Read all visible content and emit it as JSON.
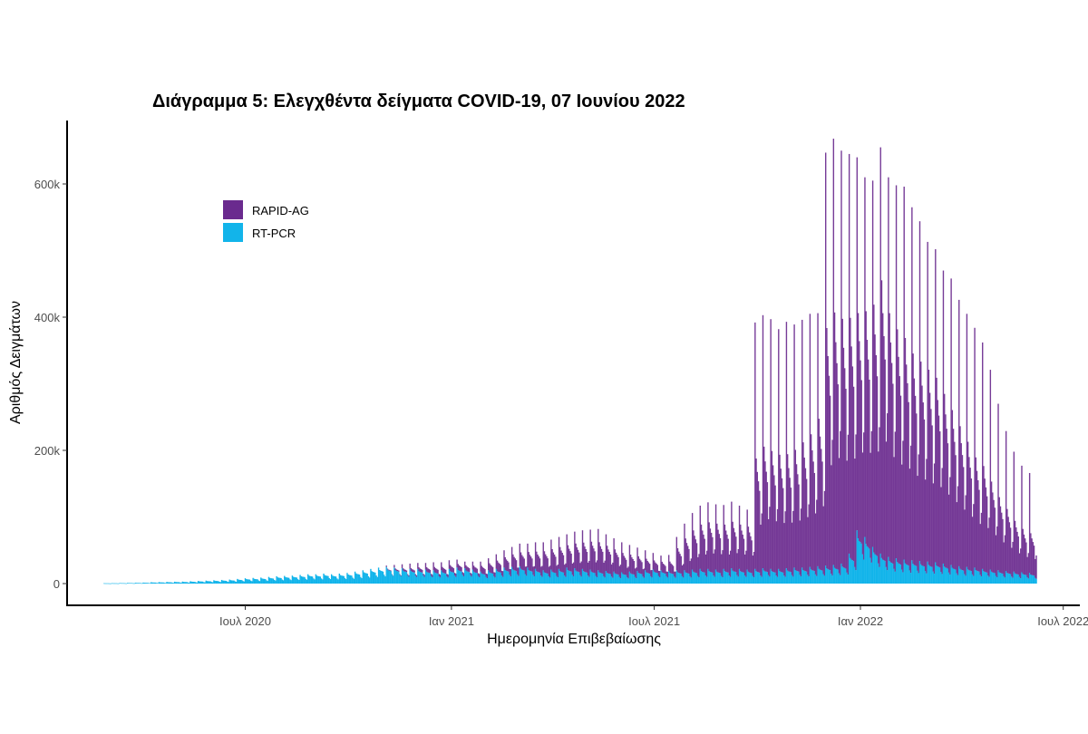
{
  "chart_data": {
    "type": "bar",
    "stacked": true,
    "title": "Διάγραμμα 5: Ελεγχθέντα δείγματα COVID-19, 07 Ιουνίου 2022",
    "xlabel": "Ημερομηνία Επιβεβαίωσης",
    "ylabel": "Αριθμός Δειγμάτων",
    "ylim": [
      0,
      690000
    ],
    "yticks": [
      0,
      200000,
      400000,
      600000
    ],
    "ytick_labels": [
      "0",
      "200k",
      "400k",
      "600k"
    ],
    "x_range": [
      "2020-01-24",
      "2022-07-15"
    ],
    "xticks": [
      "2020-07-01",
      "2021-01-01",
      "2021-07-01",
      "2022-01-01",
      "2022-07-01"
    ],
    "xtick_labels": [
      "Ιουλ 2020",
      "Ιαν 2021",
      "Ιουλ 2021",
      "Ιαν 2022",
      "Ιουλ 2022"
    ],
    "grid": false,
    "legend_position": "top-left",
    "granularity": "daily values summarized per week (first day, weekly peak day value, typical weekday value), units: samples",
    "start_date": "2020-02-26",
    "end_date": "2022-06-07",
    "series": [
      {
        "name": "RAPID-AG",
        "color": "#6a2a8e",
        "weekly_peak_k": [
          0,
          0,
          0,
          0,
          0,
          0,
          0,
          0,
          0,
          0,
          0,
          0,
          0,
          0,
          0,
          0,
          0,
          0,
          0,
          0,
          0,
          0,
          0,
          0,
          0,
          0,
          0,
          0,
          0,
          0,
          0,
          0,
          0,
          0,
          0,
          0,
          2,
          4,
          6,
          8,
          9,
          10,
          12,
          12,
          13,
          12,
          10,
          12,
          15,
          18,
          22,
          26,
          30,
          34,
          36,
          40,
          42,
          45,
          48,
          50,
          55,
          58,
          60,
          62,
          55,
          50,
          45,
          40,
          35,
          30,
          25,
          22,
          24,
          50,
          70,
          85,
          95,
          100,
          98,
          96,
          100,
          95,
          90,
          370,
          380,
          375,
          360,
          370,
          365,
          372,
          380,
          380,
          620,
          640,
          620,
          600,
          560,
          540,
          550,
          610,
          570,
          560,
          560,
          530,
          510,
          480,
          470,
          440,
          430,
          400,
          380,
          360,
          340,
          300,
          250,
          210,
          180,
          160,
          150,
          140,
          135,
          130
        ],
        "weekly_base_k": [
          0,
          0,
          0,
          0,
          0,
          0,
          0,
          0,
          0,
          0,
          0,
          0,
          0,
          0,
          0,
          0,
          0,
          0,
          0,
          0,
          0,
          0,
          0,
          0,
          0,
          0,
          0,
          0,
          0,
          0,
          0,
          0,
          0,
          0,
          0,
          0,
          1,
          2,
          3,
          4,
          5,
          6,
          7,
          7,
          8,
          8,
          7,
          8,
          10,
          12,
          14,
          17,
          20,
          22,
          24,
          26,
          28,
          30,
          32,
          33,
          36,
          38,
          40,
          40,
          36,
          32,
          28,
          25,
          22,
          18,
          15,
          14,
          15,
          32,
          45,
          55,
          62,
          65,
          64,
          62,
          65,
          62,
          60,
          150,
          165,
          160,
          155,
          155,
          160,
          170,
          180,
          200,
          320,
          340,
          330,
          320,
          300,
          310,
          330,
          370,
          330,
          310,
          300,
          280,
          270,
          260,
          250,
          230,
          210,
          190,
          170,
          150,
          140,
          120,
          100,
          85,
          70,
          60,
          55,
          50,
          48,
          45
        ]
      },
      {
        "name": "RT-PCR",
        "color": "#12b4ea",
        "weekly_peak_k": [
          0.5,
          0.6,
          0.8,
          1,
          1.2,
          1.5,
          2,
          2.2,
          2.5,
          2.8,
          3,
          3.5,
          4,
          4.5,
          5,
          5.5,
          6,
          7,
          8,
          8.5,
          9,
          10,
          11,
          11.5,
          12,
          13,
          14,
          14,
          15,
          14,
          15,
          16,
          18,
          20,
          22,
          24,
          25,
          24,
          23,
          22,
          22,
          21,
          20,
          20,
          22,
          24,
          23,
          21,
          18,
          20,
          22,
          24,
          25,
          26,
          24,
          22,
          20,
          21,
          22,
          24,
          23,
          22,
          21,
          20,
          19,
          18,
          17,
          18,
          19,
          20,
          21,
          20,
          19,
          20,
          20,
          21,
          22,
          22,
          21,
          22,
          23,
          22,
          21,
          22,
          23,
          22,
          22,
          23,
          24,
          24,
          25,
          26,
          27,
          28,
          30,
          45,
          80,
          70,
          55,
          45,
          40,
          38,
          36,
          35,
          34,
          33,
          32,
          30,
          28,
          26,
          25,
          24,
          22,
          21,
          20,
          19,
          18,
          17,
          16,
          15,
          14,
          13
        ]
      }
    ]
  },
  "legend": {
    "items": [
      {
        "label": "RAPID-AG",
        "color": "#6a2a8e"
      },
      {
        "label": "RT-PCR",
        "color": "#12b4ea"
      }
    ]
  }
}
